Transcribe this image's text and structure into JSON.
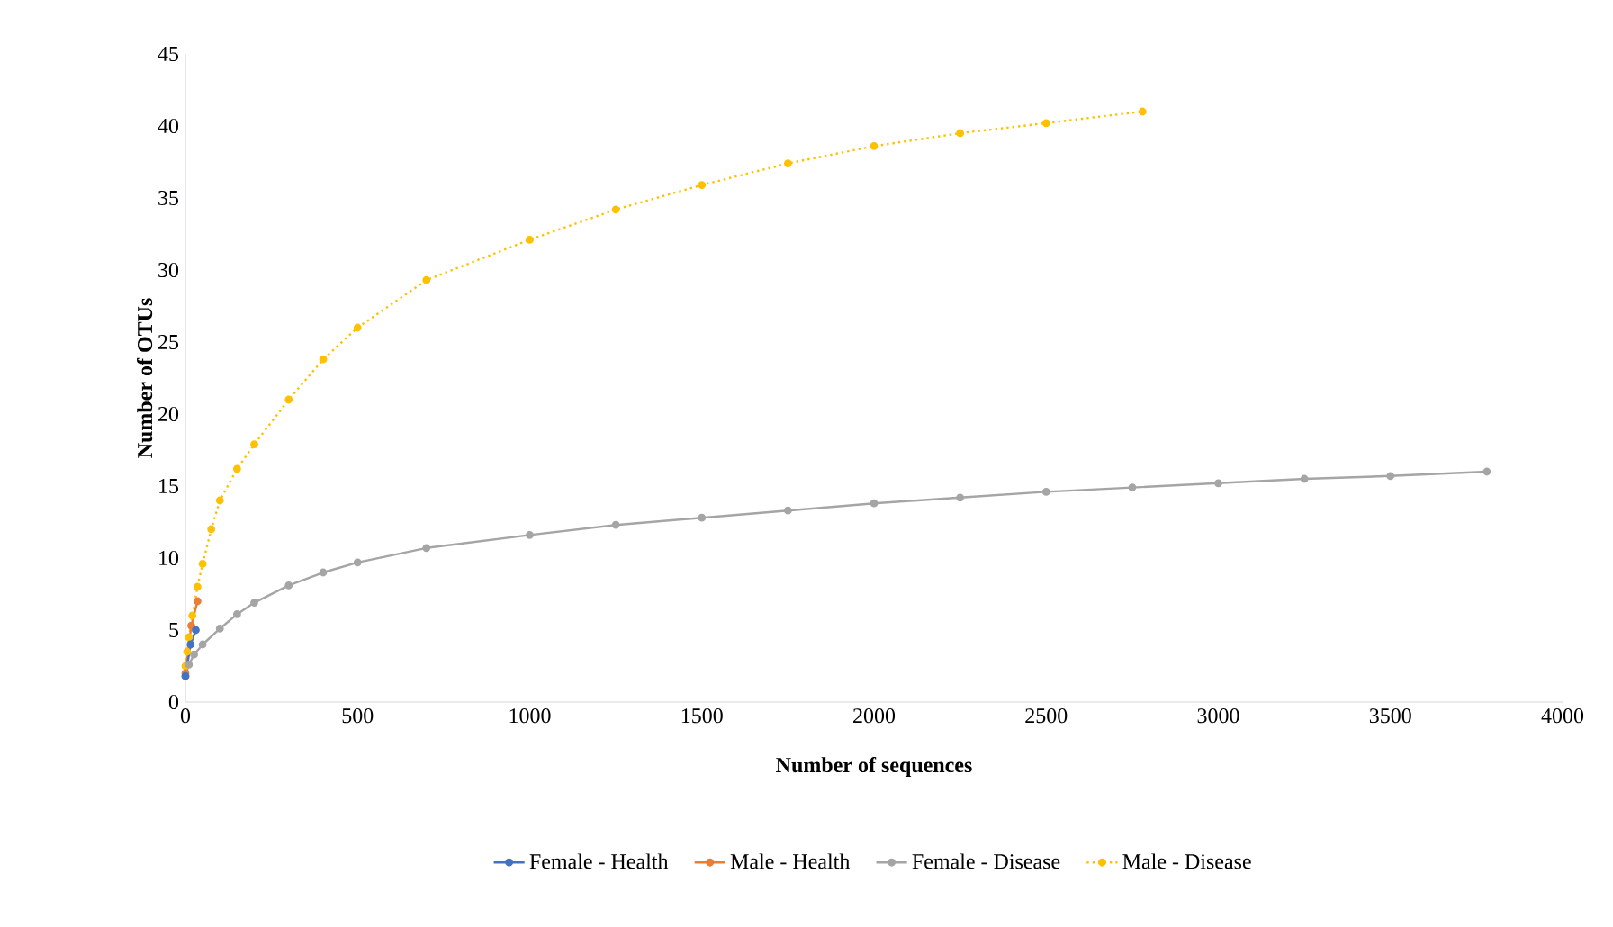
{
  "chart_data": {
    "type": "line",
    "xlabel": "Number of sequences",
    "ylabel": "Number of OTUs",
    "xlim": [
      0,
      4000
    ],
    "ylim": [
      0,
      45
    ],
    "xticks": [
      0,
      500,
      1000,
      1500,
      2000,
      2500,
      3000,
      3500,
      4000
    ],
    "yticks": [
      0,
      5,
      10,
      15,
      20,
      25,
      30,
      35,
      40,
      45
    ],
    "grid": false,
    "legend": "bottom",
    "marker": "circle",
    "series": [
      {
        "name": "Female - Health",
        "color": "#4472c4",
        "x": [
          0,
          15,
          30
        ],
        "values": [
          1.8,
          4.0,
          5.0
        ]
      },
      {
        "name": "Male - Health",
        "color": "#ed7d31",
        "x": [
          0,
          17,
          35
        ],
        "values": [
          2.0,
          5.3,
          7.0
        ]
      },
      {
        "name": "Female - Disease",
        "color": "#a5a5a5",
        "x": [
          0,
          10,
          25,
          50,
          100,
          150,
          200,
          300,
          400,
          500,
          700,
          1000,
          1250,
          1500,
          1750,
          2000,
          2250,
          2500,
          2750,
          3000,
          3250,
          3500,
          3780
        ],
        "values": [
          1.8,
          2.6,
          3.3,
          4.0,
          5.1,
          6.1,
          6.9,
          8.1,
          9.0,
          9.7,
          10.7,
          11.6,
          12.3,
          12.8,
          13.3,
          13.8,
          14.2,
          14.6,
          14.9,
          15.2,
          15.5,
          15.7,
          16.0
        ]
      },
      {
        "name": "Male - Disease",
        "color": "#ffc000",
        "line_style": "dotted",
        "x": [
          0,
          5,
          10,
          20,
          35,
          50,
          75,
          100,
          150,
          200,
          300,
          400,
          500,
          700,
          1000,
          1250,
          1500,
          1750,
          2000,
          2250,
          2500,
          2780
        ],
        "values": [
          2.5,
          3.5,
          4.5,
          6.0,
          8.0,
          9.6,
          12.0,
          14.0,
          16.2,
          17.9,
          21.0,
          23.8,
          26.0,
          29.3,
          32.1,
          34.2,
          35.9,
          37.4,
          38.6,
          39.5,
          40.2,
          41.0
        ]
      }
    ]
  }
}
